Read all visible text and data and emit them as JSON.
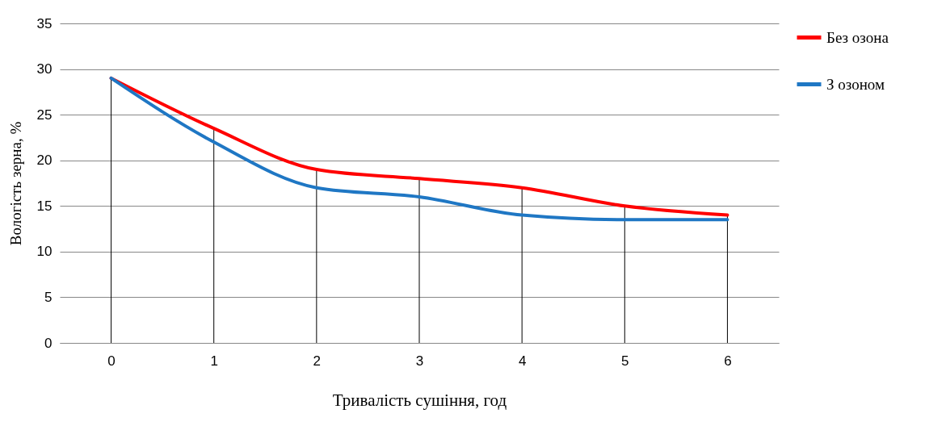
{
  "chart_data": {
    "type": "line",
    "xlabel": "Тривалість сушіння, год",
    "ylabel": "Вологість зерна, %",
    "categories": [
      "0",
      "1",
      "2",
      "3",
      "4",
      "5",
      "6"
    ],
    "series": [
      {
        "name": "Без озона",
        "color": "#ff0000",
        "values": [
          29,
          23.5,
          19,
          18,
          17,
          15,
          14
        ],
        "errors": [
          [
            0,
            29
          ],
          [
            0,
            23.5
          ],
          [
            0,
            19
          ],
          [
            0,
            18
          ],
          [
            0,
            17
          ],
          [
            0,
            15
          ],
          [
            0,
            14
          ]
        ]
      },
      {
        "name": "З озоном",
        "color": "#1f77c4",
        "values": [
          29,
          22,
          17,
          16,
          14,
          13.5,
          13.5
        ]
      }
    ],
    "ylim": [
      0,
      35
    ],
    "yticks": [
      0,
      5,
      10,
      15,
      20,
      25,
      30,
      35
    ],
    "grid": "y",
    "legend": "right",
    "marker": "none",
    "line_style": "solid"
  }
}
